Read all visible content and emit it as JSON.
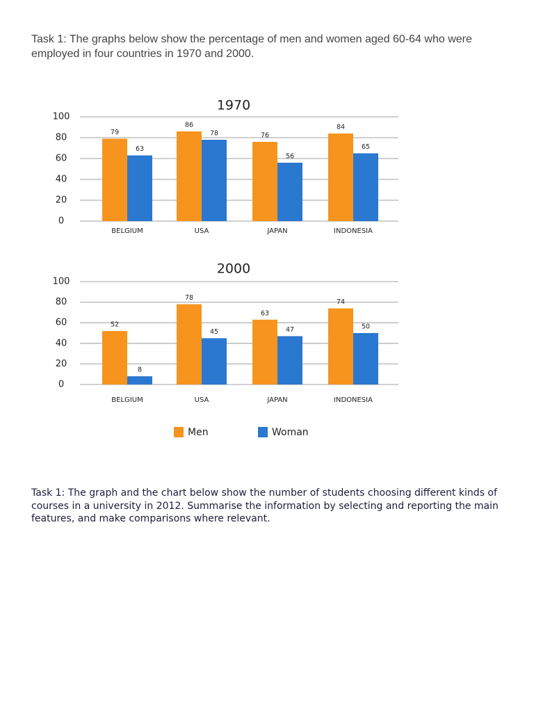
{
  "paragraphs": [
    "Task 1: The graphs below show the percentage of men and women aged 60-64 who were employed in four countries in 1970 and 2000.",
    "Task 1: The graph and the chart below show the number of students choosing different kinds of courses in a university in 2012. Summarise the information by selecting and reporting the main features, and make comparisons where relevant."
  ],
  "chart_data": [
    {
      "type": "bar",
      "title": "1970",
      "categories": [
        "BELGIUM",
        "USA",
        "JAPAN",
        "INDONESIA"
      ],
      "series": [
        {
          "name": "Men",
          "color": "#f7941d",
          "values": [
            79,
            86,
            76,
            84
          ]
        },
        {
          "name": "Woman",
          "color": "#2a78d0",
          "values": [
            63,
            78,
            56,
            65
          ]
        }
      ],
      "ylim": [
        0,
        100
      ],
      "yticks": [
        0,
        20,
        40,
        60,
        80,
        100
      ],
      "grid": true
    },
    {
      "type": "bar",
      "title": "2000",
      "categories": [
        "BELGIUM",
        "USA",
        "JAPAN",
        "INDONESIA"
      ],
      "series": [
        {
          "name": "Men",
          "color": "#f7941d",
          "values": [
            52,
            78,
            63,
            74
          ]
        },
        {
          "name": "Woman",
          "color": "#2a78d0",
          "values": [
            8,
            45,
            47,
            50
          ]
        }
      ],
      "ylim": [
        0,
        100
      ],
      "yticks": [
        0,
        20,
        40,
        60,
        80,
        100
      ],
      "grid": true
    }
  ]
}
